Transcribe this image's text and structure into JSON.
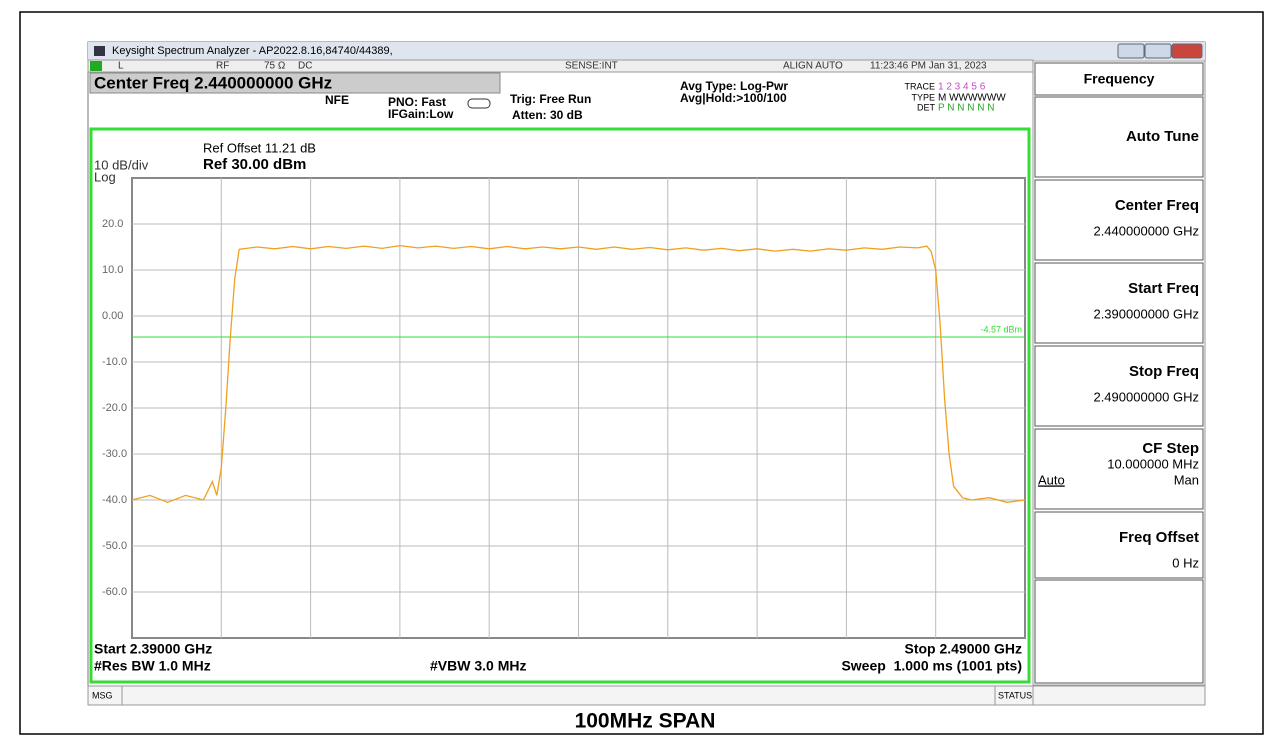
{
  "window": {
    "title": "Keysight Spectrum Analyzer - AP2022.8.16,84740/44389,"
  },
  "status_bar": {
    "input": "L",
    "rf": "RF",
    "impedance": "75 Ω",
    "coupling": "DC",
    "sense": "SENSE:INT",
    "align": "ALIGN AUTO",
    "time": "11:23:46 PM Jan 31, 2023"
  },
  "header": {
    "center_freq": "Center Freq 2.440000000 GHz",
    "nfe": "NFE",
    "pno": "PNO: Fast",
    "ifgain": "IFGain:Low",
    "trig": "Trig: Free Run",
    "atten": "Atten: 30 dB",
    "avg_type": "Avg Type: Log-Pwr",
    "avg_hold": "Avg|Hold:>100/100",
    "trace_label": "TRACE",
    "trace_numbers": "1 2 3 4 5 6",
    "type_label": "TYPE",
    "type_values": "M WWWWWW",
    "det_label": "DET",
    "det_values": "P N N N N N"
  },
  "chart_data": {
    "type": "line",
    "ref_offset": "Ref Offset 11.21 dB",
    "scale_label": "10 dB/div",
    "ref_label": "Ref 30.00 dBm",
    "scale_type": "Log",
    "xlim": [
      2.39,
      2.49
    ],
    "ylim": [
      -70,
      30
    ],
    "yticks": [
      {
        "value": 20,
        "label": "20.0"
      },
      {
        "value": 10,
        "label": "10.0"
      },
      {
        "value": 0,
        "label": "0.00"
      },
      {
        "value": -10,
        "label": "-10.0"
      },
      {
        "value": -20,
        "label": "-20.0"
      },
      {
        "value": -30,
        "label": "-30.0"
      },
      {
        "value": -40,
        "label": "-40.0"
      },
      {
        "value": -50,
        "label": "-50.0"
      },
      {
        "value": -60,
        "label": "-60.0"
      }
    ],
    "grid": true,
    "x": [
      2.39,
      2.392,
      2.394,
      2.396,
      2.398,
      2.399,
      2.3995,
      2.4,
      2.4005,
      2.401,
      2.4015,
      2.402,
      2.404,
      2.406,
      2.408,
      2.41,
      2.412,
      2.414,
      2.416,
      2.418,
      2.42,
      2.422,
      2.424,
      2.426,
      2.428,
      2.43,
      2.432,
      2.434,
      2.436,
      2.438,
      2.44,
      2.442,
      2.444,
      2.446,
      2.448,
      2.45,
      2.452,
      2.454,
      2.456,
      2.458,
      2.46,
      2.462,
      2.464,
      2.466,
      2.468,
      2.47,
      2.472,
      2.474,
      2.476,
      2.478,
      2.479,
      2.4795,
      2.48,
      2.4805,
      2.481,
      2.4815,
      2.482,
      2.483,
      2.484,
      2.486,
      2.488,
      2.49
    ],
    "series": [
      {
        "color": "#f0a020",
        "values": [
          -40,
          -39,
          -40.5,
          -39,
          -40,
          -36,
          -39,
          -33,
          -20,
          -5,
          8,
          14.5,
          15.0,
          14.6,
          15.1,
          14.6,
          15.1,
          14.7,
          15.2,
          14.7,
          15.3,
          14.8,
          15.2,
          14.7,
          15.1,
          14.6,
          15.1,
          14.6,
          15.0,
          14.6,
          15.0,
          14.5,
          15.0,
          14.5,
          14.9,
          14.4,
          14.8,
          14.3,
          14.7,
          14.2,
          14.6,
          14.1,
          14.5,
          14.1,
          14.6,
          14.3,
          14.8,
          14.5,
          15.0,
          14.8,
          15.2,
          14,
          10,
          -2,
          -18,
          -30,
          -37,
          -39.5,
          -40,
          -39.5,
          -40.5,
          -40
        ]
      }
    ],
    "display_line": -4.57,
    "display_line_label": "-4.57 dBm",
    "display_line_color": "#33dd33",
    "start_label": "Start 2.39000 GHz",
    "stop_label": "Stop 2.49000 GHz",
    "rbw_label": "#Res BW 1.0 MHz",
    "vbw_label": "#VBW 3.0 MHz",
    "sweep_label": "Sweep  1.000 ms (1001 pts)"
  },
  "message_bar": {
    "msg": "MSG",
    "status": "STATUS"
  },
  "softkeys": {
    "menu_title": "Frequency",
    "keys": [
      {
        "label": "Auto Tune"
      },
      {
        "label": "Center Freq",
        "value": "2.440000000 GHz"
      },
      {
        "label": "Start Freq",
        "value": "2.390000000 GHz"
      },
      {
        "label": "Stop Freq",
        "value": "2.490000000 GHz"
      },
      {
        "label": "CF Step",
        "value": "10.000000 MHz",
        "options": [
          "Auto",
          "Man"
        ]
      },
      {
        "label": "Freq Offset",
        "value": "0 Hz"
      }
    ]
  },
  "caption": "100MHz SPAN"
}
